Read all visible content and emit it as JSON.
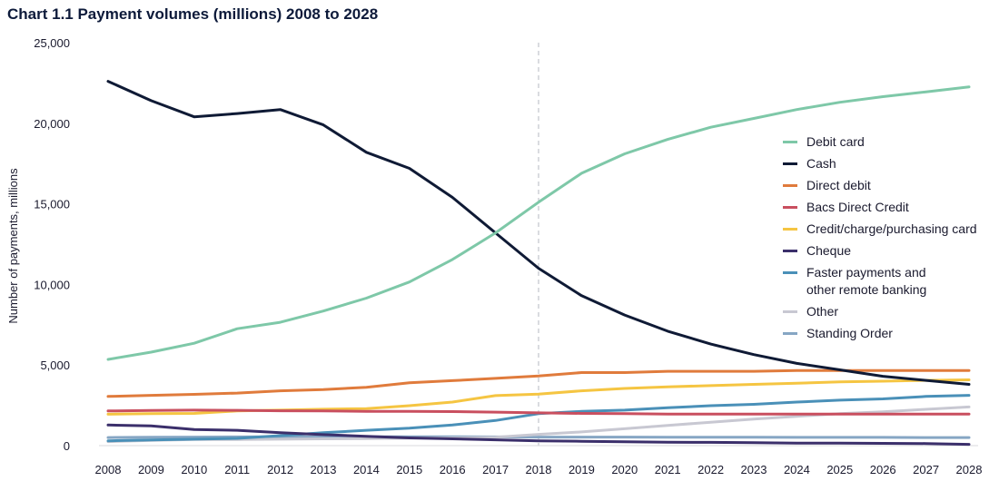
{
  "chart_data": {
    "type": "line",
    "title": "Chart 1.1 Payment volumes (millions) 2008 to 2028",
    "ylabel": "Number of payments, millions",
    "xlabel": "",
    "ylim": [
      0,
      25000
    ],
    "yticks": [
      0,
      5000,
      10000,
      15000,
      20000,
      25000
    ],
    "ytick_labels": [
      "0",
      "5,000",
      "10,000",
      "15,000",
      "20,000",
      "25,000"
    ],
    "x": [
      "2008",
      "2009",
      "2010",
      "2011",
      "2012",
      "2013",
      "2014",
      "2015",
      "2016",
      "2017",
      "2018",
      "2019",
      "2020",
      "2021",
      "2022",
      "2023",
      "2024",
      "2025",
      "2026",
      "2027",
      "2028"
    ],
    "forecast_start": "2018",
    "grid": false,
    "legend_position": "right",
    "series": [
      {
        "name": "Debit card",
        "color": "#7ec8a8",
        "values": [
          5350,
          5800,
          6350,
          7250,
          7650,
          8350,
          9150,
          10150,
          11550,
          13200,
          15100,
          16900,
          18100,
          19000,
          19750,
          20300,
          20850,
          21300,
          21650,
          21950,
          22250
        ]
      },
      {
        "name": "Cash",
        "color": "#0f1a35",
        "values": [
          22600,
          21400,
          20400,
          20600,
          20850,
          19900,
          18200,
          17200,
          15400,
          13200,
          11000,
          9300,
          8100,
          7100,
          6300,
          5650,
          5100,
          4700,
          4300,
          4050,
          3800
        ]
      },
      {
        "name": "Direct debit",
        "color": "#e07b3c",
        "values": [
          3050,
          3120,
          3180,
          3260,
          3400,
          3480,
          3620,
          3900,
          4030,
          4170,
          4320,
          4530,
          4530,
          4610,
          4610,
          4610,
          4660,
          4660,
          4660,
          4660,
          4660
        ]
      },
      {
        "name": "Bacs Direct Credit",
        "color": "#c94f5f",
        "values": [
          2150,
          2180,
          2200,
          2190,
          2160,
          2150,
          2130,
          2120,
          2110,
          2080,
          2030,
          2000,
          1980,
          1960,
          1960,
          1960,
          1960,
          1960,
          1960,
          1960,
          1960
        ]
      },
      {
        "name": "Credit/charge/purchasing card",
        "color": "#f5c542",
        "values": [
          1950,
          1980,
          2000,
          2150,
          2200,
          2260,
          2300,
          2480,
          2700,
          3100,
          3200,
          3400,
          3550,
          3650,
          3720,
          3800,
          3870,
          3950,
          4000,
          4050,
          4080
        ]
      },
      {
        "name": "Cheque",
        "color": "#3b2f6b",
        "values": [
          1280,
          1220,
          1000,
          950,
          800,
          680,
          580,
          480,
          420,
          360,
          290,
          270,
          240,
          210,
          200,
          180,
          160,
          150,
          140,
          130,
          80
        ]
      },
      {
        "name": "Faster payments and\nother remote banking",
        "color": "#4a90b8",
        "values": [
          300,
          350,
          400,
          450,
          620,
          800,
          950,
          1080,
          1280,
          1560,
          1980,
          2120,
          2200,
          2350,
          2480,
          2560,
          2700,
          2820,
          2900,
          3050,
          3120
        ]
      },
      {
        "name": "Other",
        "color": "#c8c8d2",
        "values": [
          250,
          320,
          380,
          380,
          400,
          420,
          440,
          460,
          480,
          520,
          700,
          850,
          1050,
          1250,
          1450,
          1650,
          1820,
          1980,
          2100,
          2250,
          2400
        ]
      },
      {
        "name": "Standing Order",
        "color": "#86a6c4",
        "values": [
          500,
          520,
          530,
          540,
          550,
          550,
          550,
          550,
          550,
          540,
          530,
          530,
          530,
          520,
          520,
          520,
          510,
          510,
          510,
          500,
          500
        ]
      }
    ]
  }
}
